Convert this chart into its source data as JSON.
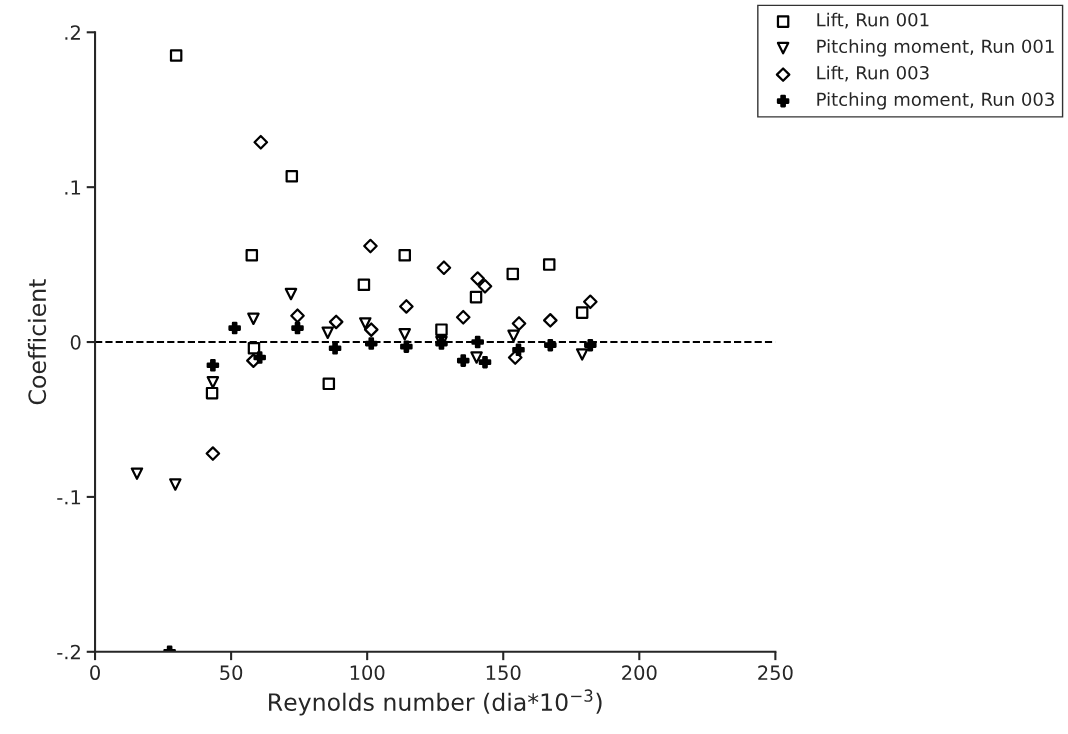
{
  "chart_data": {
    "type": "scatter",
    "xlabel": "Reynolds number (dia*10$^{−3}$)",
    "ylabel": "Coefficient",
    "xlim": [
      0,
      250
    ],
    "xticks": [
      0,
      50,
      100,
      150,
      200,
      250
    ],
    "ylim": [
      -0.2,
      0.2
    ],
    "yticks": [
      {
        "value": -0.2,
        "label": "-.2"
      },
      {
        "value": -0.1,
        "label": "-.1"
      },
      0,
      {
        "value": 0.1,
        "label": ".1"
      },
      {
        "value": 0.2,
        "label": ".2"
      }
    ],
    "series": [
      {
        "name": "Lift, Run 001",
        "color": "#000000",
        "marker": "square",
        "x": [
          29.8,
          72.3,
          57.6,
          98.8,
          113.8,
          58.4,
          43,
          85.9,
          140,
          153.5,
          166.9,
          179,
          127.3
        ],
        "values": [
          0.185,
          0.107,
          0.056,
          0.037,
          0.056,
          -0.004,
          -0.033,
          -0.027,
          0.029,
          0.044,
          0.05,
          0.019,
          0.008
        ]
      },
      {
        "name": "Pitching moment, Run 001",
        "color": "#000000",
        "marker": "triangle",
        "x": [
          15.4,
          29.5,
          43.3,
          58.2,
          72,
          85.5,
          99.3,
          113.8,
          127.3,
          140.2,
          153.8,
          179
        ],
        "values": [
          -0.085,
          -0.092,
          -0.026,
          0.015,
          0.031,
          0.006,
          0.012,
          0.005,
          0.0,
          -0.01,
          0.004,
          -0.008
        ]
      },
      {
        "name": "Lift, Run 003",
        "color": "#000000",
        "marker": "diamond",
        "x": [
          60.9,
          43.3,
          58.2,
          74.4,
          88.6,
          101.5,
          101.2,
          114.4,
          128.2,
          140.6,
          143.3,
          135.3,
          155.8,
          167.3,
          182,
          154.4
        ],
        "values": [
          0.129,
          -0.072,
          -0.012,
          0.017,
          0.013,
          0.008,
          0.062,
          0.023,
          0.048,
          0.041,
          0.036,
          0.016,
          0.012,
          0.014,
          0.026,
          -0.01
        ]
      },
      {
        "name": "Pitching moment, Run 003",
        "color": "#000000",
        "marker": "cross",
        "x": [
          27.4,
          43.3,
          51.3,
          60.5,
          74.4,
          88.2,
          101.5,
          114.4,
          127.3,
          135.3,
          140.6,
          143.3,
          155.6,
          167.3,
          182
        ],
        "values": [
          -0.2,
          -0.015,
          0.009,
          -0.01,
          0.009,
          -0.004,
          -0.001,
          -0.003,
          -0.001,
          -0.012,
          0.0,
          -0.013,
          -0.005,
          -0.002,
          -0.002
        ]
      }
    ],
    "ref_lines": [
      {
        "axis": "y",
        "value": 0,
        "line_style": "dashed",
        "color": "#000000"
      }
    ],
    "legend": "top right",
    "grid": false
  }
}
